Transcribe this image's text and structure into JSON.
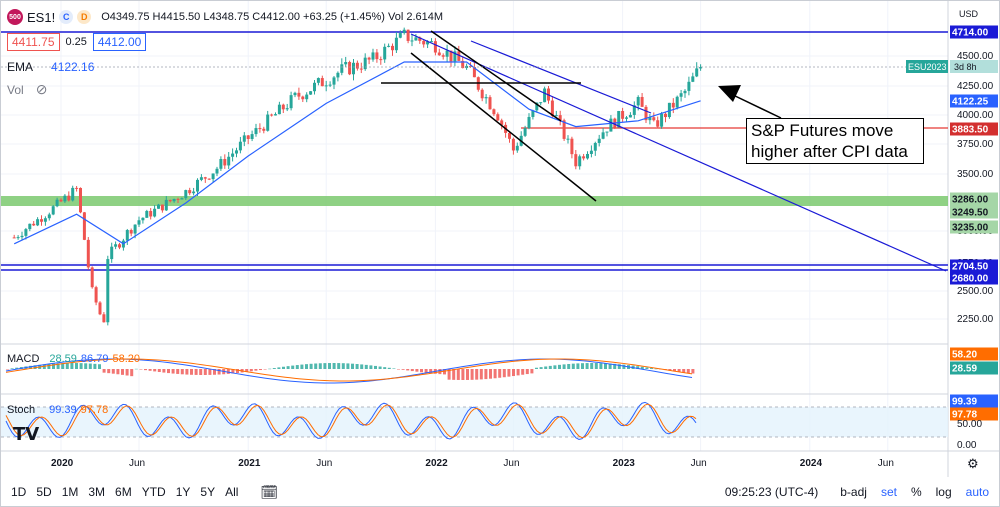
{
  "legend": {
    "symbol": "ES1!",
    "badge": "500",
    "ohlc": "O4349.75 H4415.50 L4348.75 C4412.00 +63.25 (+1.45%) Vol 2.614M",
    "bid": "4411.75",
    "spread": "0.25",
    "ask": "4412.00",
    "ema_label": "EMA",
    "ema_value": "4122.16",
    "vol_label": "Vol",
    "macd_label": "MACD",
    "macd_v1": "28.59",
    "macd_v2": "86.79",
    "macd_v3": "58.20",
    "stoch_label": "Stoch",
    "stoch_v1": "99.39",
    "stoch_v2": "97.78"
  },
  "axis": {
    "currency": "USD",
    "price_ticks": [
      "4500.00",
      "4250.00",
      "4000.00",
      "3750.00",
      "3500.00",
      "3000.00",
      "2750.00",
      "2500.00",
      "2250.00"
    ],
    "x_ticks": [
      "2020",
      "Jun",
      "2021",
      "Jun",
      "2022",
      "Jun",
      "2023",
      "Jun",
      "2024",
      "Jun"
    ],
    "macd_tags": [
      "58.20",
      "28.59"
    ],
    "stoch_tags": [
      "99.39",
      "97.78"
    ],
    "stoch_ticks": [
      "50.00",
      "0.00"
    ]
  },
  "price_tags": {
    "top_line": "4714.00",
    "esu": "ESU2023",
    "esu_time": "3d 8h",
    "ema": "4122.25",
    "red_line": "3883.50",
    "g1": "3286.00",
    "g2": "3249.50",
    "g3": "3235.00",
    "b1": "2704.50",
    "b2": "2680.00"
  },
  "annotation": "S&P Futures move higher after CPI data",
  "toolbar": {
    "timeframes": [
      "1D",
      "5D",
      "1M",
      "3M",
      "6M",
      "YTD",
      "1Y",
      "5Y",
      "All"
    ],
    "time": "09:25:23 (UTC-4)",
    "badj": "b-adj",
    "set": "set",
    "pct": "%",
    "log": "log",
    "auto": "auto"
  },
  "colors": {
    "up": "#26a69a",
    "down": "#ef5350",
    "ema": "#2962ff",
    "trend": "#1a1ad6",
    "support": "#7bc96f",
    "resistance": "#e53935",
    "macd": "#2962ff",
    "signal": "#ff6d00"
  },
  "chart_data": {
    "type": "candlestick",
    "symbol": "ES1!",
    "x_range": [
      "2019-10",
      "2024-10"
    ],
    "y_range": [
      2000,
      4800
    ],
    "close_path": [
      [
        "2019-10",
        2950
      ],
      [
        "2019-12",
        3150
      ],
      [
        "2020-02",
        3370
      ],
      [
        "2020-03",
        2500
      ],
      [
        "2020-03-23",
        2200
      ],
      [
        "2020-04",
        2800
      ],
      [
        "2020-06",
        3100
      ],
      [
        "2020-09",
        3350
      ],
      [
        "2020-11",
        3550
      ],
      [
        "2021-01",
        3800
      ],
      [
        "2021-04",
        4150
      ],
      [
        "2021-07",
        4380
      ],
      [
        "2021-09",
        4470
      ],
      [
        "2021-11",
        4680
      ],
      [
        "2022-01",
        4600
      ],
      [
        "2022-03",
        4400
      ],
      [
        "2022-05",
        4000
      ],
      [
        "2022-06",
        3700
      ],
      [
        "2022-08",
        4200
      ],
      [
        "2022-10",
        3600
      ],
      [
        "2022-12",
        3900
      ],
      [
        "2023-02",
        4100
      ],
      [
        "2023-03",
        3900
      ],
      [
        "2023-05",
        4200
      ],
      [
        "2023-06",
        4412
      ]
    ],
    "ema_path": [
      [
        "2019-10",
        2900
      ],
      [
        "2020-02",
        3150
      ],
      [
        "2020-05",
        2900
      ],
      [
        "2020-09",
        3250
      ],
      [
        "2021-01",
        3650
      ],
      [
        "2021-06",
        4100
      ],
      [
        "2021-11",
        4450
      ],
      [
        "2022-03",
        4450
      ],
      [
        "2022-07",
        4050
      ],
      [
        "2022-10",
        3900
      ],
      [
        "2023-02",
        3950
      ],
      [
        "2023-06",
        4122.16
      ]
    ],
    "horizontal_levels": [
      {
        "value": 4714.0,
        "color": "blue"
      },
      {
        "value": 3883.5,
        "color": "red"
      },
      {
        "value": 3286.0,
        "color": "green"
      },
      {
        "value": 3249.5,
        "color": "green"
      },
      {
        "value": 3235.0,
        "color": "green"
      },
      {
        "value": 2704.5,
        "color": "blue"
      },
      {
        "value": 2680.0,
        "color": "blue"
      }
    ],
    "macd": {
      "macd": 86.79,
      "signal": 58.2,
      "histogram": 28.59
    },
    "stoch": {
      "k": 99.39,
      "d": 97.78
    }
  }
}
